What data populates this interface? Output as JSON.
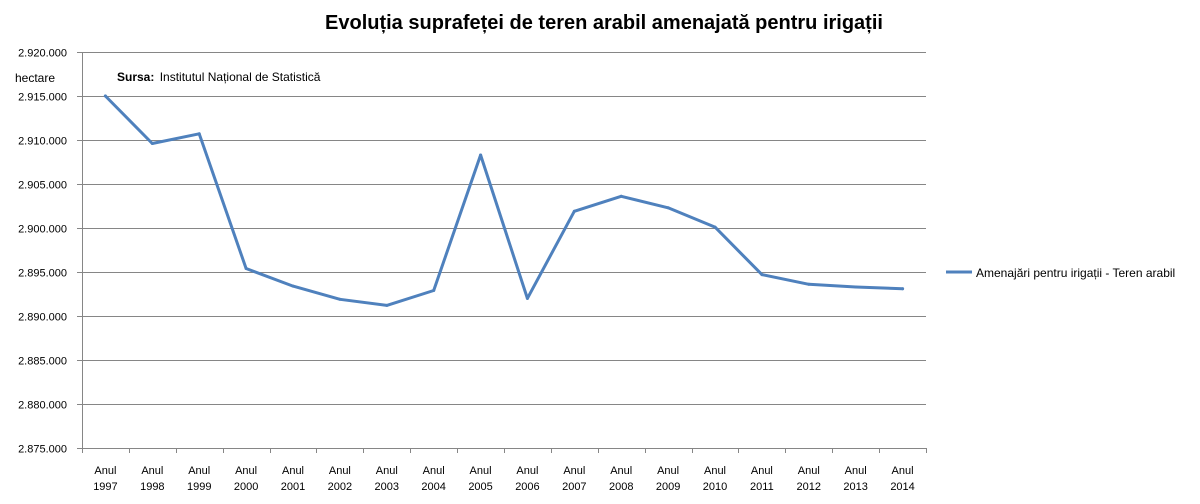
{
  "chart_data": {
    "type": "line",
    "title": "Evoluția suprafeței de teren arabil amenajată pentru irigații",
    "ylabel": "hectare",
    "source_label": "Sursa:",
    "source_text": "Institutul Național  de Statistică",
    "categories": [
      [
        "Anul",
        "1997"
      ],
      [
        "Anul",
        "1998"
      ],
      [
        "Anul",
        "1999"
      ],
      [
        "Anul",
        "2000"
      ],
      [
        "Anul",
        "2001"
      ],
      [
        "Anul",
        "2002"
      ],
      [
        "Anul",
        "2003"
      ],
      [
        "Anul",
        "2004"
      ],
      [
        "Anul",
        "2005"
      ],
      [
        "Anul",
        "2006"
      ],
      [
        "Anul",
        "2007"
      ],
      [
        "Anul",
        "2008"
      ],
      [
        "Anul",
        "2009"
      ],
      [
        "Anul",
        "2010"
      ],
      [
        "Anul",
        "2011"
      ],
      [
        "Anul",
        "2012"
      ],
      [
        "Anul",
        "2013"
      ],
      [
        "Anul",
        "2014"
      ]
    ],
    "series": [
      {
        "name": "Amenajări pentru irigații - Teren arabil",
        "color": "#4f81bd",
        "values": [
          2915000,
          2909600,
          2910700,
          2895400,
          2893400,
          2891900,
          2891200,
          2892900,
          2908300,
          2892000,
          2901900,
          2903600,
          2902300,
          2900100,
          2894700,
          2893600,
          2893300,
          2893100
        ]
      }
    ],
    "ylim": [
      2875000,
      2920000
    ],
    "y_ticks": [
      2875000,
      2880000,
      2885000,
      2890000,
      2895000,
      2900000,
      2905000,
      2910000,
      2915000,
      2920000
    ],
    "y_tick_labels": [
      "2.875.000",
      "2.880.000",
      "2.885.000",
      "2.890.000",
      "2.895.000",
      "2.900.000",
      "2.905.000",
      "2.910.000",
      "2.915.000",
      "2.920.000"
    ],
    "grid": true,
    "legend_position": "right",
    "gridline_color": "#868686",
    "axis_color": "#868686"
  }
}
